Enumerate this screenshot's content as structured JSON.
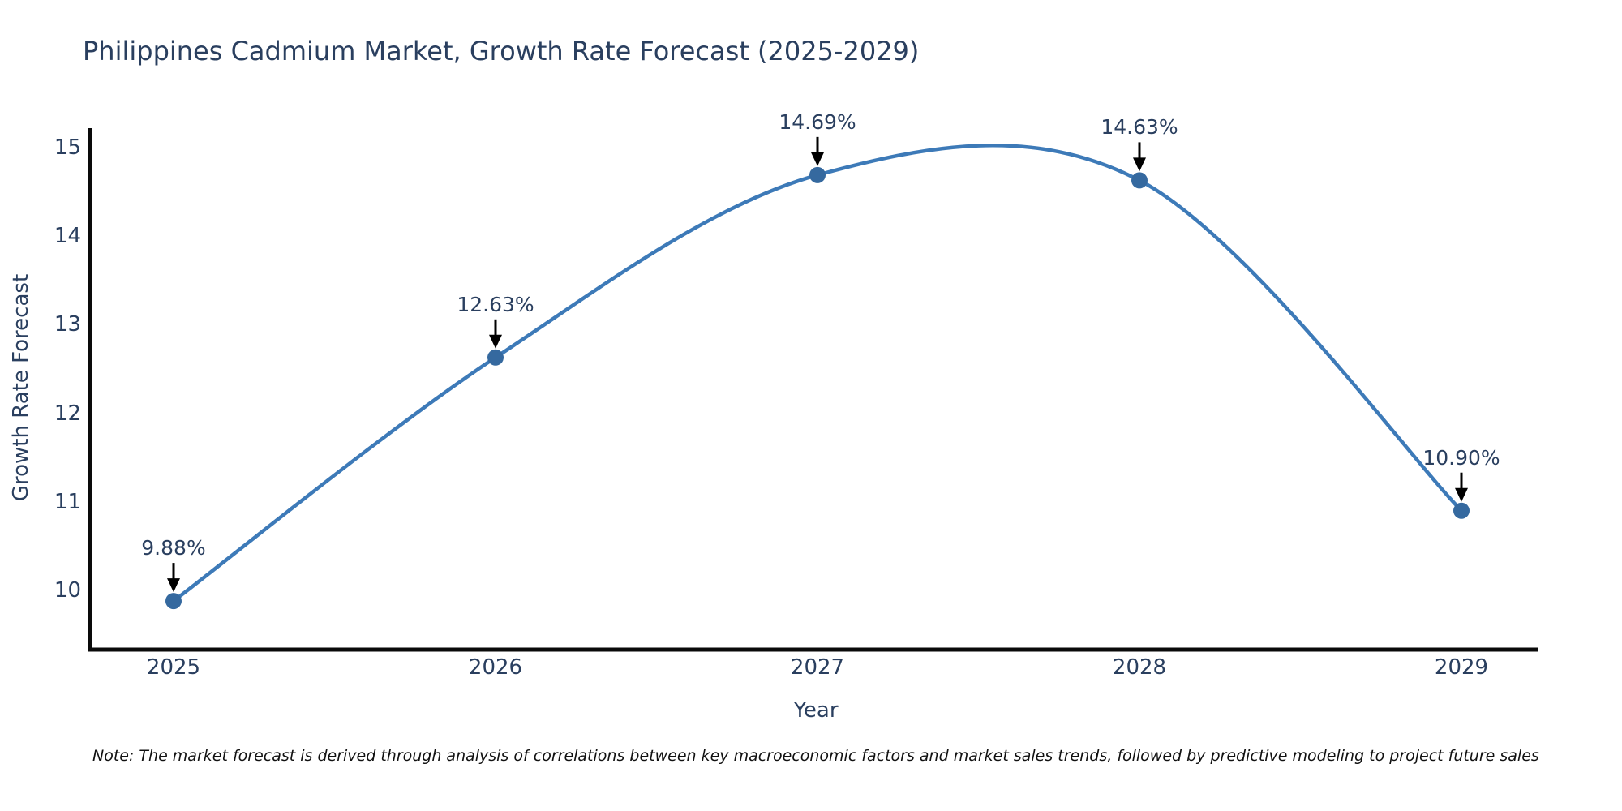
{
  "chart": {
    "title": "Philippines Cadmium Market, Growth Rate Forecast (2025-2029)",
    "xlabel": "Year",
    "ylabel": "Growth Rate Forecast",
    "note": "Note: The market forecast is derived through analysis of correlations between key macroeconomic factors and market sales trends, followed by predictive modeling to project future sales",
    "colors": {
      "line": "#3d7ab8",
      "marker": "#35699f",
      "axis": "#0a0a0a",
      "text": "#2a3f5f",
      "annotation_arrow": "#000000",
      "background": "#ffffff"
    }
  },
  "chart_data": {
    "type": "line",
    "line_shape": "spline",
    "markers": true,
    "grid": false,
    "legend": false,
    "title": "Philippines Cadmium Market, Growth Rate Forecast (2025-2029)",
    "xlabel": "Year",
    "ylabel": "Growth Rate Forecast",
    "categories": [
      "2025",
      "2026",
      "2027",
      "2028",
      "2029"
    ],
    "values": [
      9.88,
      12.63,
      14.69,
      14.63,
      10.9
    ],
    "point_labels": [
      "9.88%",
      "12.63%",
      "14.69%",
      "14.63%",
      "10.90%"
    ],
    "yticks": [
      10,
      11,
      12,
      13,
      14,
      15
    ],
    "ylim": [
      9.35,
      15.2
    ],
    "annotation_style": "black arrow pointing down from percent label to each data point"
  }
}
